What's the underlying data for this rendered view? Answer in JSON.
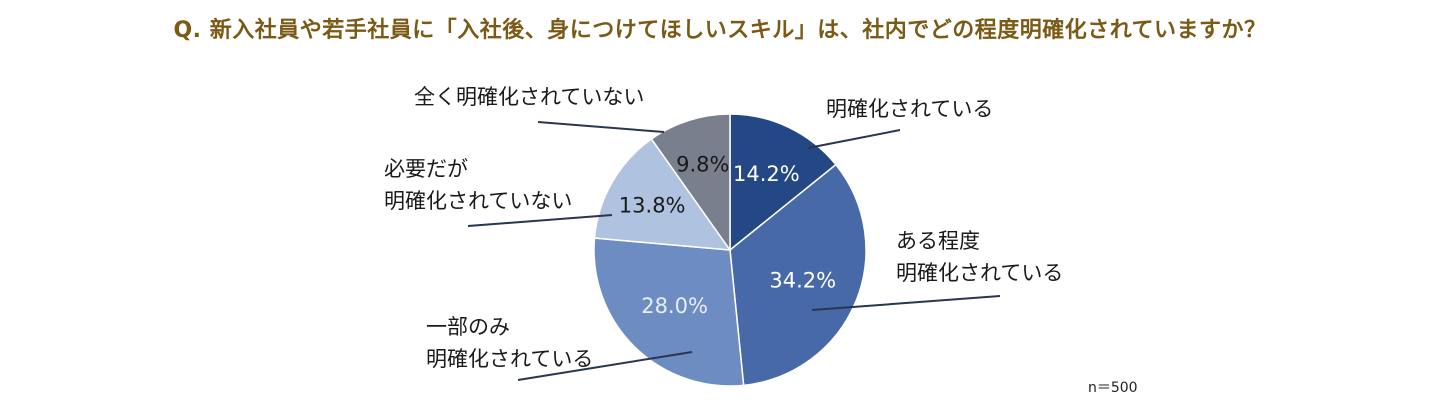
{
  "title": "Q. 新入社員や若手社員に「入社後、身につけてほしいスキル」は、社内でどの程度明確化されていますか？",
  "sample_size": "n＝500",
  "colors": {
    "title": "#7a5a14",
    "slice_1": "#244785",
    "slice_2": "#4869a8",
    "slice_3": "#6d8cc2",
    "slice_4": "#afc2e0",
    "slice_5": "#7a7f8e"
  },
  "chart_data": {
    "type": "pie",
    "title": "Q. 新入社員や若手社員に「入社後、身につけてほしいスキル」は、社内でどの程度明確化されていますか？",
    "start_angle_deg": 0,
    "direction": "clockwise",
    "slices": [
      {
        "label_lines": [
          "明確化されている"
        ],
        "value": 14.2,
        "value_label": "14.2%",
        "color": "#244785"
      },
      {
        "label_lines": [
          "ある程度",
          "明確化されている"
        ],
        "value": 34.2,
        "value_label": "34.2%",
        "color": "#4869a8"
      },
      {
        "label_lines": [
          "一部のみ",
          "明確化されている"
        ],
        "value": 28.0,
        "value_label": "28.0%",
        "color": "#6d8cc2"
      },
      {
        "label_lines": [
          "必要だが",
          "明確化されていない"
        ],
        "value": 13.8,
        "value_label": "13.8%",
        "color": "#afc2e0"
      },
      {
        "label_lines": [
          "全く明確化されていない"
        ],
        "value": 9.8,
        "value_label": "9.8%",
        "color": "#7a7f8e"
      }
    ]
  }
}
